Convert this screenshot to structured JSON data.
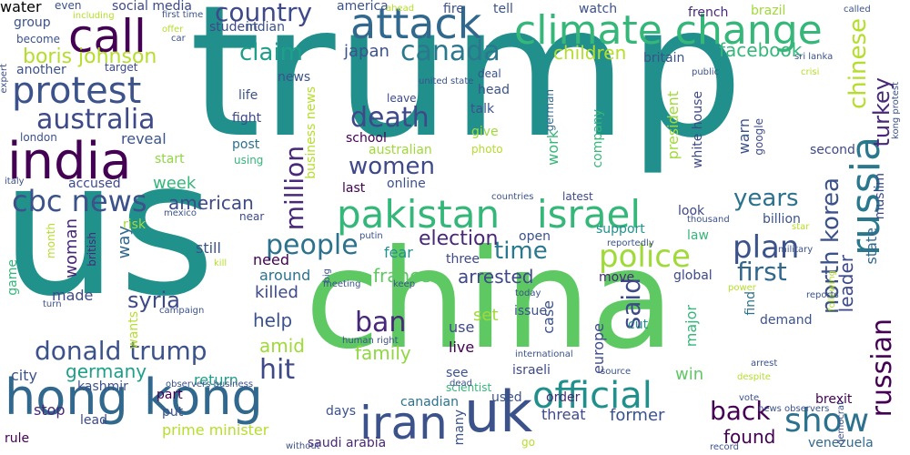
{
  "words": [
    {
      "text": "trump",
      "color": "#21908d"
    },
    {
      "text": "us",
      "color": "#21918c"
    },
    {
      "text": "china",
      "color": "#5ec962"
    },
    {
      "text": "india",
      "color": "#440154"
    },
    {
      "text": "hong kong",
      "color": "#31688e"
    },
    {
      "text": "uk",
      "color": "#3b528b"
    },
    {
      "text": "iran",
      "color": "#3b528b"
    },
    {
      "text": "attack",
      "color": "#31688e"
    },
    {
      "text": "climate change",
      "color": "#35b779"
    },
    {
      "text": "call",
      "color": "#440154"
    },
    {
      "text": "protest",
      "color": "#3b528b"
    },
    {
      "text": "country",
      "color": "#3e4989"
    },
    {
      "text": "pakistan",
      "color": "#35b779"
    },
    {
      "text": "israel",
      "color": "#35b779"
    },
    {
      "text": "russia",
      "color": "#2a788e"
    },
    {
      "text": "official",
      "color": "#21908d"
    },
    {
      "text": "people",
      "color": "#2c728e"
    },
    {
      "text": "plan",
      "color": "#3b528b"
    },
    {
      "text": "police",
      "color": "#a0da39"
    },
    {
      "text": "canada",
      "color": "#2a788e"
    },
    {
      "text": "australia",
      "color": "#3e4989"
    },
    {
      "text": "death",
      "color": "#3e4989"
    },
    {
      "text": "cbc news",
      "color": "#3b528b"
    },
    {
      "text": "donald trump",
      "color": "#3b528b"
    },
    {
      "text": "ban",
      "color": "#482878"
    },
    {
      "text": "show",
      "color": "#2c728e"
    },
    {
      "text": "back",
      "color": "#440154"
    },
    {
      "text": "hit",
      "color": "#3e4989"
    },
    {
      "text": "first",
      "color": "#31688e"
    },
    {
      "text": "time",
      "color": "#2a788e"
    },
    {
      "text": "women",
      "color": "#3e4989"
    },
    {
      "text": "years",
      "color": "#2c728e"
    },
    {
      "text": "said",
      "color": "#3e4989"
    },
    {
      "text": "russian",
      "color": "#440154"
    },
    {
      "text": "turkey",
      "color": "#482878"
    },
    {
      "text": "north korea",
      "color": "#3b528b"
    },
    {
      "text": "chinese",
      "color": "#b5de2b"
    },
    {
      "text": "million",
      "color": "#482878"
    },
    {
      "text": "boris johnson",
      "color": "#b5de2b"
    },
    {
      "text": "claim",
      "color": "#1f9e89"
    },
    {
      "text": "facebook",
      "color": "#35b779"
    },
    {
      "text": "children",
      "color": "#b5de2b"
    },
    {
      "text": "japan",
      "color": "#3b528b"
    },
    {
      "text": "election",
      "color": "#482878"
    },
    {
      "text": "arrested",
      "color": "#3e4989"
    },
    {
      "text": "syria",
      "color": "#3e4989"
    },
    {
      "text": "france",
      "color": "#5ec962"
    },
    {
      "text": "germany",
      "color": "#1f9e89"
    },
    {
      "text": "family",
      "color": "#90d743"
    },
    {
      "text": "amid",
      "color": "#a0da39"
    },
    {
      "text": "help",
      "color": "#3b528b"
    },
    {
      "text": "american",
      "color": "#3e4989"
    },
    {
      "text": "woman",
      "color": "#482878"
    },
    {
      "text": "way",
      "color": "#31688e"
    },
    {
      "text": "week",
      "color": "#35b779"
    },
    {
      "text": "fear",
      "color": "#21918c"
    },
    {
      "text": "need",
      "color": "#440154"
    },
    {
      "text": "around",
      "color": "#2c728e"
    },
    {
      "text": "killed",
      "color": "#3e4989"
    },
    {
      "text": "made",
      "color": "#3e4989"
    },
    {
      "text": "still",
      "color": "#3b528b"
    },
    {
      "text": "use",
      "color": "#3e4989"
    },
    {
      "text": "live",
      "color": "#440154"
    },
    {
      "text": "see",
      "color": "#3b528b"
    },
    {
      "text": "days",
      "color": "#3b528b"
    },
    {
      "text": "part",
      "color": "#440154"
    },
    {
      "text": "put",
      "color": "#3b528b"
    },
    {
      "text": "stop",
      "color": "#482878"
    },
    {
      "text": "lead",
      "color": "#3e4989"
    },
    {
      "text": "city",
      "color": "#3b528b"
    },
    {
      "text": "kashmir",
      "color": "#3b528b"
    },
    {
      "text": "return",
      "color": "#1f9e89"
    },
    {
      "text": "prime minister",
      "color": "#b5de2b"
    },
    {
      "text": "saudi arabia",
      "color": "#482878"
    },
    {
      "text": "canadian",
      "color": "#2c728e"
    },
    {
      "text": "threat",
      "color": "#3e4989"
    },
    {
      "text": "former",
      "color": "#3b528b"
    },
    {
      "text": "found",
      "color": "#440154"
    },
    {
      "text": "win",
      "color": "#5ec962"
    },
    {
      "text": "demand",
      "color": "#3b528b"
    },
    {
      "text": "brexit",
      "color": "#440154"
    },
    {
      "text": "venezuela",
      "color": "#31688e"
    },
    {
      "text": "leader",
      "color": "#3e4989"
    },
    {
      "text": "global",
      "color": "#3e4989"
    },
    {
      "text": "law",
      "color": "#35b779"
    },
    {
      "text": "billion",
      "color": "#3b528b"
    },
    {
      "text": "muslim",
      "color": "#3e4989"
    },
    {
      "text": "second",
      "color": "#3e4989"
    },
    {
      "text": "find",
      "color": "#2c728e"
    },
    {
      "text": "state",
      "color": "#31688e"
    },
    {
      "text": "case",
      "color": "#3b528b"
    },
    {
      "text": "set",
      "color": "#a0da39"
    },
    {
      "text": "move",
      "color": "#482878"
    },
    {
      "text": "support",
      "color": "#21918c"
    },
    {
      "text": "open",
      "color": "#3b528b"
    },
    {
      "text": "three",
      "color": "#3e4989"
    },
    {
      "text": "europe",
      "color": "#3e4989"
    },
    {
      "text": "major",
      "color": "#35b779"
    },
    {
      "text": "cut",
      "color": "#21918c"
    },
    {
      "text": "israeli",
      "color": "#3e4989"
    },
    {
      "text": "order",
      "color": "#482878"
    },
    {
      "text": "used",
      "color": "#3b528b"
    },
    {
      "text": "white house",
      "color": "#3e4989"
    },
    {
      "text": "warn",
      "color": "#3b528b"
    },
    {
      "text": "look",
      "color": "#3e4989"
    },
    {
      "text": "google",
      "color": "#3e4989"
    },
    {
      "text": "latest",
      "color": "#3e4989"
    },
    {
      "text": "president",
      "color": "#a0da39"
    },
    {
      "text": "company",
      "color": "#35b779"
    },
    {
      "text": "work",
      "color": "#35b779"
    },
    {
      "text": "german",
      "color": "#31688e"
    },
    {
      "text": "head",
      "color": "#3b528b"
    },
    {
      "text": "deal",
      "color": "#3b528b"
    },
    {
      "text": "talk",
      "color": "#3b528b"
    },
    {
      "text": "give",
      "color": "#a0da39"
    },
    {
      "text": "photo",
      "color": "#b5de2b"
    },
    {
      "text": "school",
      "color": "#440154"
    },
    {
      "text": "australian",
      "color": "#a0da39"
    },
    {
      "text": "last",
      "color": "#440154"
    },
    {
      "text": "online",
      "color": "#3b528b"
    },
    {
      "text": "accused",
      "color": "#3e4989"
    },
    {
      "text": "start",
      "color": "#90d743"
    },
    {
      "text": "reveal",
      "color": "#3b528b"
    },
    {
      "text": "post",
      "color": "#2c728e"
    },
    {
      "text": "using",
      "color": "#35b779"
    },
    {
      "text": "life",
      "color": "#3b528b"
    },
    {
      "text": "fight",
      "color": "#3e4989"
    },
    {
      "text": "news",
      "color": "#3b528b"
    },
    {
      "text": "business news",
      "color": "#b5de2b"
    },
    {
      "text": "student",
      "color": "#3e4989"
    },
    {
      "text": "indian",
      "color": "#3b528b"
    },
    {
      "text": "group",
      "color": "#3b528b"
    },
    {
      "text": "become",
      "color": "#3b528b"
    },
    {
      "text": "another",
      "color": "#3b528b"
    },
    {
      "text": "target",
      "color": "#3e4989"
    },
    {
      "text": "london",
      "color": "#3b528b"
    },
    {
      "text": "social media",
      "color": "#3e4989"
    },
    {
      "text": "even",
      "color": "#3b528b"
    },
    {
      "text": "america",
      "color": "#3b528b"
    },
    {
      "text": "fire",
      "color": "#3b528b"
    },
    {
      "text": "tell",
      "color": "#3b528b"
    },
    {
      "text": "watch",
      "color": "#3b528b"
    },
    {
      "text": "french",
      "color": "#482878"
    },
    {
      "text": "brazil",
      "color": "#a0da39"
    },
    {
      "text": "britain",
      "color": "#3b528b"
    },
    {
      "text": "leave",
      "color": "#3e4989"
    },
    {
      "text": "risk",
      "color": "#a0da39"
    },
    {
      "text": "near",
      "color": "#3e4989"
    },
    {
      "text": "wants",
      "color": "#b5de2b"
    },
    {
      "text": "british",
      "color": "#482878"
    },
    {
      "text": "month",
      "color": "#b5de2b"
    },
    {
      "text": "game",
      "color": "#35b779"
    },
    {
      "text": "scientist",
      "color": "#35b779"
    },
    {
      "text": "issue",
      "color": "#3b528b"
    },
    {
      "text": "go",
      "color": "#b5de2b"
    },
    {
      "text": "rule",
      "color": "#440154"
    },
    {
      "text": "many",
      "color": "#3b528b"
    },
    {
      "text": "ahead",
      "color": "#b5de2b"
    },
    {
      "text": "first time",
      "color": "#3b528b"
    },
    {
      "text": "including",
      "color": "#b5de2b"
    },
    {
      "text": "offer",
      "color": "#b5de2b"
    },
    {
      "text": "car",
      "color": "#3b528b"
    },
    {
      "text": "called",
      "color": "#3b528b"
    },
    {
      "text": "sri lanka",
      "color": "#3b528b"
    },
    {
      "text": "public",
      "color": "#3b528b"
    },
    {
      "text": "crisi",
      "color": "#b5de2b"
    },
    {
      "text": "expert",
      "color": "#3b528b"
    },
    {
      "text": "kong protest",
      "color": "#3b528b"
    },
    {
      "text": "united state",
      "color": "#3b528b"
    },
    {
      "text": "italy",
      "color": "#3b528b"
    },
    {
      "text": "mexico",
      "color": "#3b528b"
    },
    {
      "text": "countries",
      "color": "#3b528b"
    },
    {
      "text": "thousand",
      "color": "#3b528b"
    },
    {
      "text": "military",
      "color": "#3b528b"
    },
    {
      "text": "star",
      "color": "#b5de2b"
    },
    {
      "text": "reportedly",
      "color": "#3b528b"
    },
    {
      "text": "putin",
      "color": "#3b528b"
    },
    {
      "text": "big",
      "color": "#3b528b"
    },
    {
      "text": "kill",
      "color": "#b5de2b"
    },
    {
      "text": "meeting",
      "color": "#3b528b"
    },
    {
      "text": "keep",
      "color": "#3b528b"
    },
    {
      "text": "today",
      "color": "#3b528b"
    },
    {
      "text": "power",
      "color": "#b5de2b"
    },
    {
      "text": "following",
      "color": "#b5de2b"
    },
    {
      "text": "turn",
      "color": "#3b528b"
    },
    {
      "text": "campaign",
      "color": "#3b528b"
    },
    {
      "text": "human right",
      "color": "#3b528b"
    },
    {
      "text": "international",
      "color": "#3b528b"
    },
    {
      "text": "source",
      "color": "#3b528b"
    },
    {
      "text": "reports",
      "color": "#3b528b"
    },
    {
      "text": "despite",
      "color": "#b5de2b"
    },
    {
      "text": "arrest",
      "color": "#3b528b"
    },
    {
      "text": "vote",
      "color": "#3b528b"
    },
    {
      "text": "news observers",
      "color": "#3b528b"
    },
    {
      "text": "democrat",
      "color": "#3b528b"
    },
    {
      "text": "observers business",
      "color": "#3b528b"
    },
    {
      "text": "dead",
      "color": "#3b528b"
    },
    {
      "text": "without",
      "color": "#3b528b"
    },
    {
      "text": "record",
      "color": "#3b528b"
    },
    {
      "text": "water",
      "color": "#3b528b"
    }
  ]
}
